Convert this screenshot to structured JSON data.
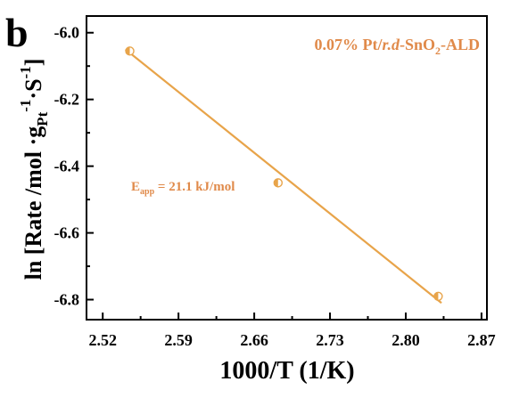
{
  "panel_label": "b",
  "colors": {
    "series": "#E8A44A",
    "annotation": "#E08A4A",
    "axis": "#000000"
  },
  "chart_data": {
    "type": "scatter",
    "title": "",
    "xlabel": "1000/T (1/K)",
    "ylabel": {
      "prefix": "ln [Rate /mol ·g",
      "sub": "Pt",
      "sup1": "-1",
      "mid": "·S",
      "sup2": "-1",
      "suffix": "]"
    },
    "xlim": [
      2.505,
      2.875
    ],
    "ylim": [
      -6.86,
      -5.95
    ],
    "xticks": [
      "2.52",
      "2.59",
      "2.66",
      "2.73",
      "2.80",
      "2.87"
    ],
    "yticks": [
      "-6.0",
      "-6.2",
      "-6.4",
      "-6.6",
      "-6.8"
    ],
    "grid": false,
    "legend": {
      "position": "top-right",
      "text_parts": [
        "0.07% Pt/",
        "r.d",
        "-SnO",
        "2",
        "-ALD"
      ]
    },
    "annotation": {
      "main": "E",
      "sub": "app",
      "rest": " = 21.1 kJ/mol"
    },
    "series": [
      {
        "points": [
          {
            "x": 2.545,
            "y": -6.055
          },
          {
            "x": 2.682,
            "y": -6.45
          },
          {
            "x": 2.83,
            "y": -6.79
          }
        ],
        "fit_line": {
          "x": [
            2.541,
            2.833
          ],
          "y": [
            -6.05,
            -6.81
          ]
        }
      }
    ]
  }
}
